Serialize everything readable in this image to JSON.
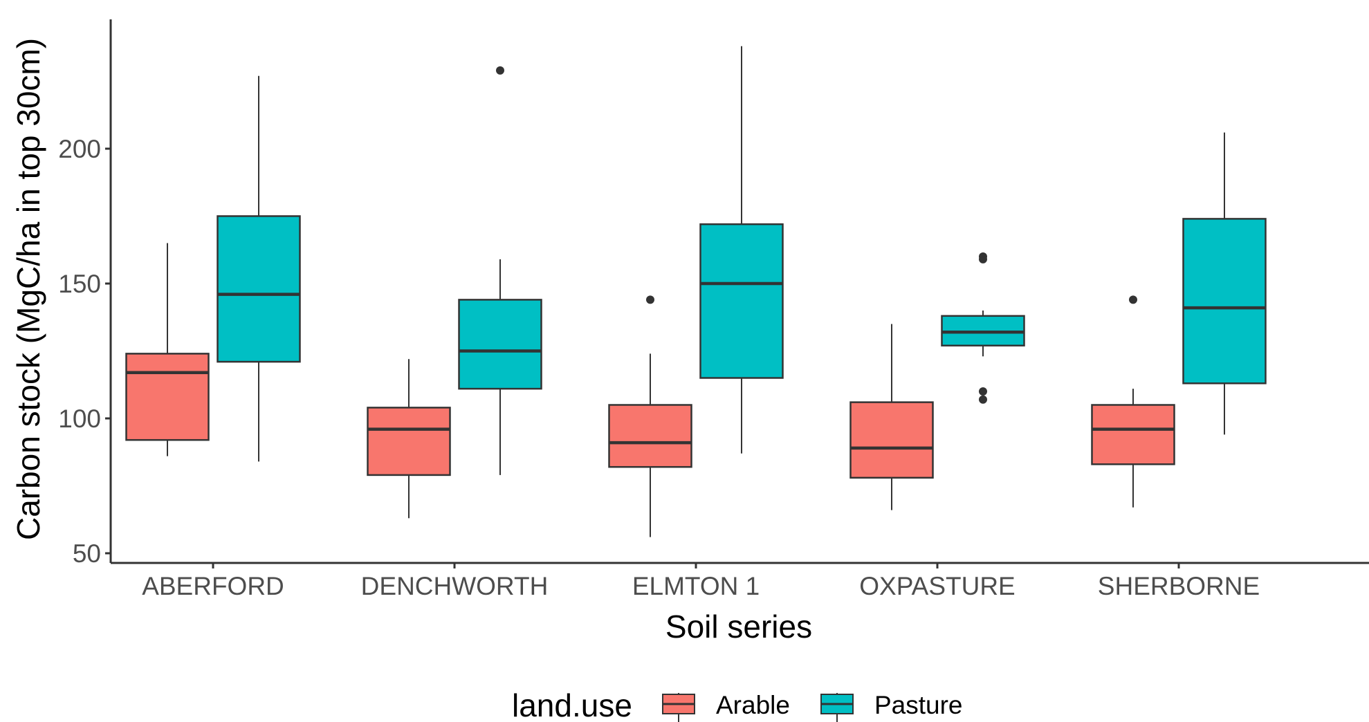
{
  "chart_data": {
    "type": "boxplot",
    "xlabel": "Soil series",
    "ylabel": "Carbon stock (MgC/ha in top 30cm)",
    "categories": [
      "ABERFORD",
      "DENCHWORTH",
      "ELMTON 1",
      "OXPASTURE",
      "SHERBORNE"
    ],
    "y_ticks": [
      50,
      100,
      150,
      200
    ],
    "ylim": [
      48,
      248
    ],
    "grid": false,
    "legend": {
      "title": "land.use",
      "position": "bottom",
      "entries": [
        "Arable",
        "Pasture"
      ]
    },
    "colors": {
      "Arable": "#F8766D",
      "Pasture": "#00BFC4"
    },
    "series": [
      {
        "name": "Arable",
        "boxes": [
          {
            "whisker_low": 86,
            "q1": 92,
            "median": 117,
            "q3": 124,
            "whisker_high": 165,
            "outliers": []
          },
          {
            "whisker_low": 63,
            "q1": 79,
            "median": 96,
            "q3": 104,
            "whisker_high": 122,
            "outliers": []
          },
          {
            "whisker_low": 56,
            "q1": 82,
            "median": 91,
            "q3": 105,
            "whisker_high": 124,
            "outliers": [
              144
            ]
          },
          {
            "whisker_low": 66,
            "q1": 78,
            "median": 89,
            "q3": 106,
            "whisker_high": 135,
            "outliers": []
          },
          {
            "whisker_low": 67,
            "q1": 83,
            "median": 96,
            "q3": 105,
            "whisker_high": 111,
            "outliers": [
              144
            ]
          }
        ]
      },
      {
        "name": "Pasture",
        "boxes": [
          {
            "whisker_low": 84,
            "q1": 121,
            "median": 146,
            "q3": 175,
            "whisker_high": 227,
            "outliers": []
          },
          {
            "whisker_low": 79,
            "q1": 111,
            "median": 125,
            "q3": 144,
            "whisker_high": 159,
            "outliers": [
              229
            ]
          },
          {
            "whisker_low": 87,
            "q1": 115,
            "median": 150,
            "q3": 172,
            "whisker_high": 238,
            "outliers": []
          },
          {
            "whisker_low": 123,
            "q1": 127,
            "median": 132,
            "q3": 138,
            "whisker_high": 140,
            "outliers": [
              107,
              110,
              159,
              160
            ]
          },
          {
            "whisker_low": 94,
            "q1": 113,
            "median": 141,
            "q3": 174,
            "whisker_high": 206,
            "outliers": []
          }
        ]
      }
    ]
  }
}
